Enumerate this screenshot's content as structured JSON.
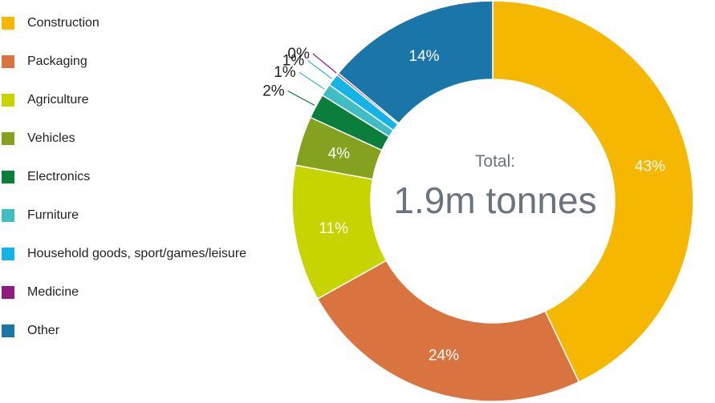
{
  "chart_data": {
    "type": "pie",
    "donut": true,
    "center_title": "Total:",
    "center_value": "1.9m tonnes",
    "legend_position": "left",
    "categories": [
      "Construction",
      "Packaging",
      "Agriculture",
      "Vehicles",
      "Electronics",
      "Furniture",
      "Household goods, sport/games/leisure",
      "Medicine",
      "Other"
    ],
    "values": [
      43,
      24,
      11,
      4,
      2,
      1,
      1,
      0,
      14
    ],
    "value_labels": [
      "43%",
      "24%",
      "11%",
      "4%",
      "2%",
      "1%",
      "1%",
      "0%",
      "14%"
    ],
    "colors": [
      "#f6b700",
      "#d9733f",
      "#c8d400",
      "#84a21f",
      "#0a7f3b",
      "#3fbcc4",
      "#14b4e6",
      "#8e1a82",
      "#1a75a8"
    ]
  }
}
